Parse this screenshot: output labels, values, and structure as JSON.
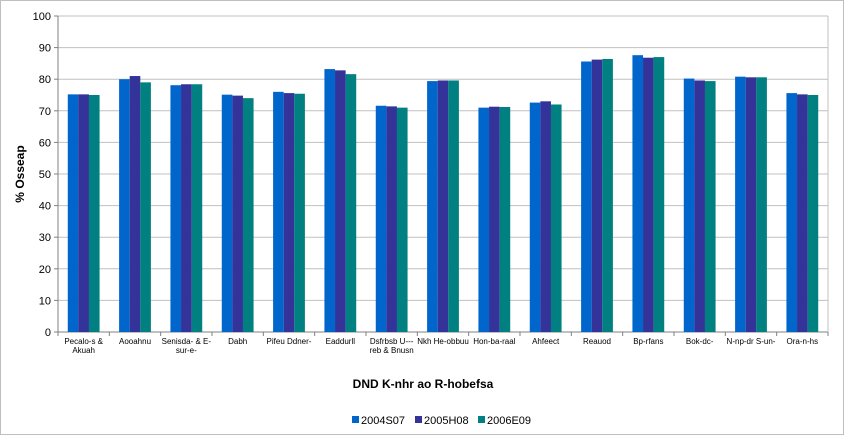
{
  "chart_data": {
    "type": "bar",
    "xlabel": "DND K-nhr ao R-hobefsa",
    "ylabel": "% Osseap",
    "ylim": [
      0,
      100
    ],
    "yticks": [
      0,
      10,
      20,
      30,
      40,
      50,
      60,
      70,
      80,
      90,
      100
    ],
    "grid": true,
    "legend_position": "bottom",
    "categories": [
      [
        "Pecalo-s &",
        "Akuah"
      ],
      [
        "Aooahnu"
      ],
      [
        "Senisda- & E-",
        "sur-e-"
      ],
      [
        "Dabh"
      ],
      [
        "Pifeu Ddner-"
      ],
      [
        "Eaddurll"
      ],
      [
        "Dsfrbsb U---",
        "reb & Bnusn"
      ],
      [
        "Nkh He-obbuu"
      ],
      [
        "Hon-ba-raal"
      ],
      [
        "Ahfeect"
      ],
      [
        "Reauod"
      ],
      [
        "Bp-rfans"
      ],
      [
        "Bok-dc-"
      ],
      [
        "N-np-dr S-un-"
      ],
      [
        "Ora-n-hs"
      ]
    ],
    "series": [
      {
        "name": "2004S07",
        "color": "#0066cc",
        "values": [
          75.2,
          80.0,
          78.1,
          75.1,
          76.0,
          83.2,
          71.6,
          79.4,
          71.0,
          72.6,
          85.6,
          87.6,
          80.2,
          80.8,
          75.6
        ]
      },
      {
        "name": "2005H08",
        "color": "#333399",
        "values": [
          75.2,
          81.0,
          78.4,
          74.8,
          75.6,
          82.8,
          71.4,
          79.6,
          71.3,
          73.0,
          86.2,
          86.8,
          79.6,
          80.6,
          75.2
        ]
      },
      {
        "name": "2006E09",
        "color": "#008080",
        "values": [
          75.0,
          79.0,
          78.4,
          74.0,
          75.4,
          81.6,
          71.0,
          79.6,
          71.2,
          72.0,
          86.4,
          87.0,
          79.4,
          80.6,
          75.0
        ]
      }
    ]
  }
}
